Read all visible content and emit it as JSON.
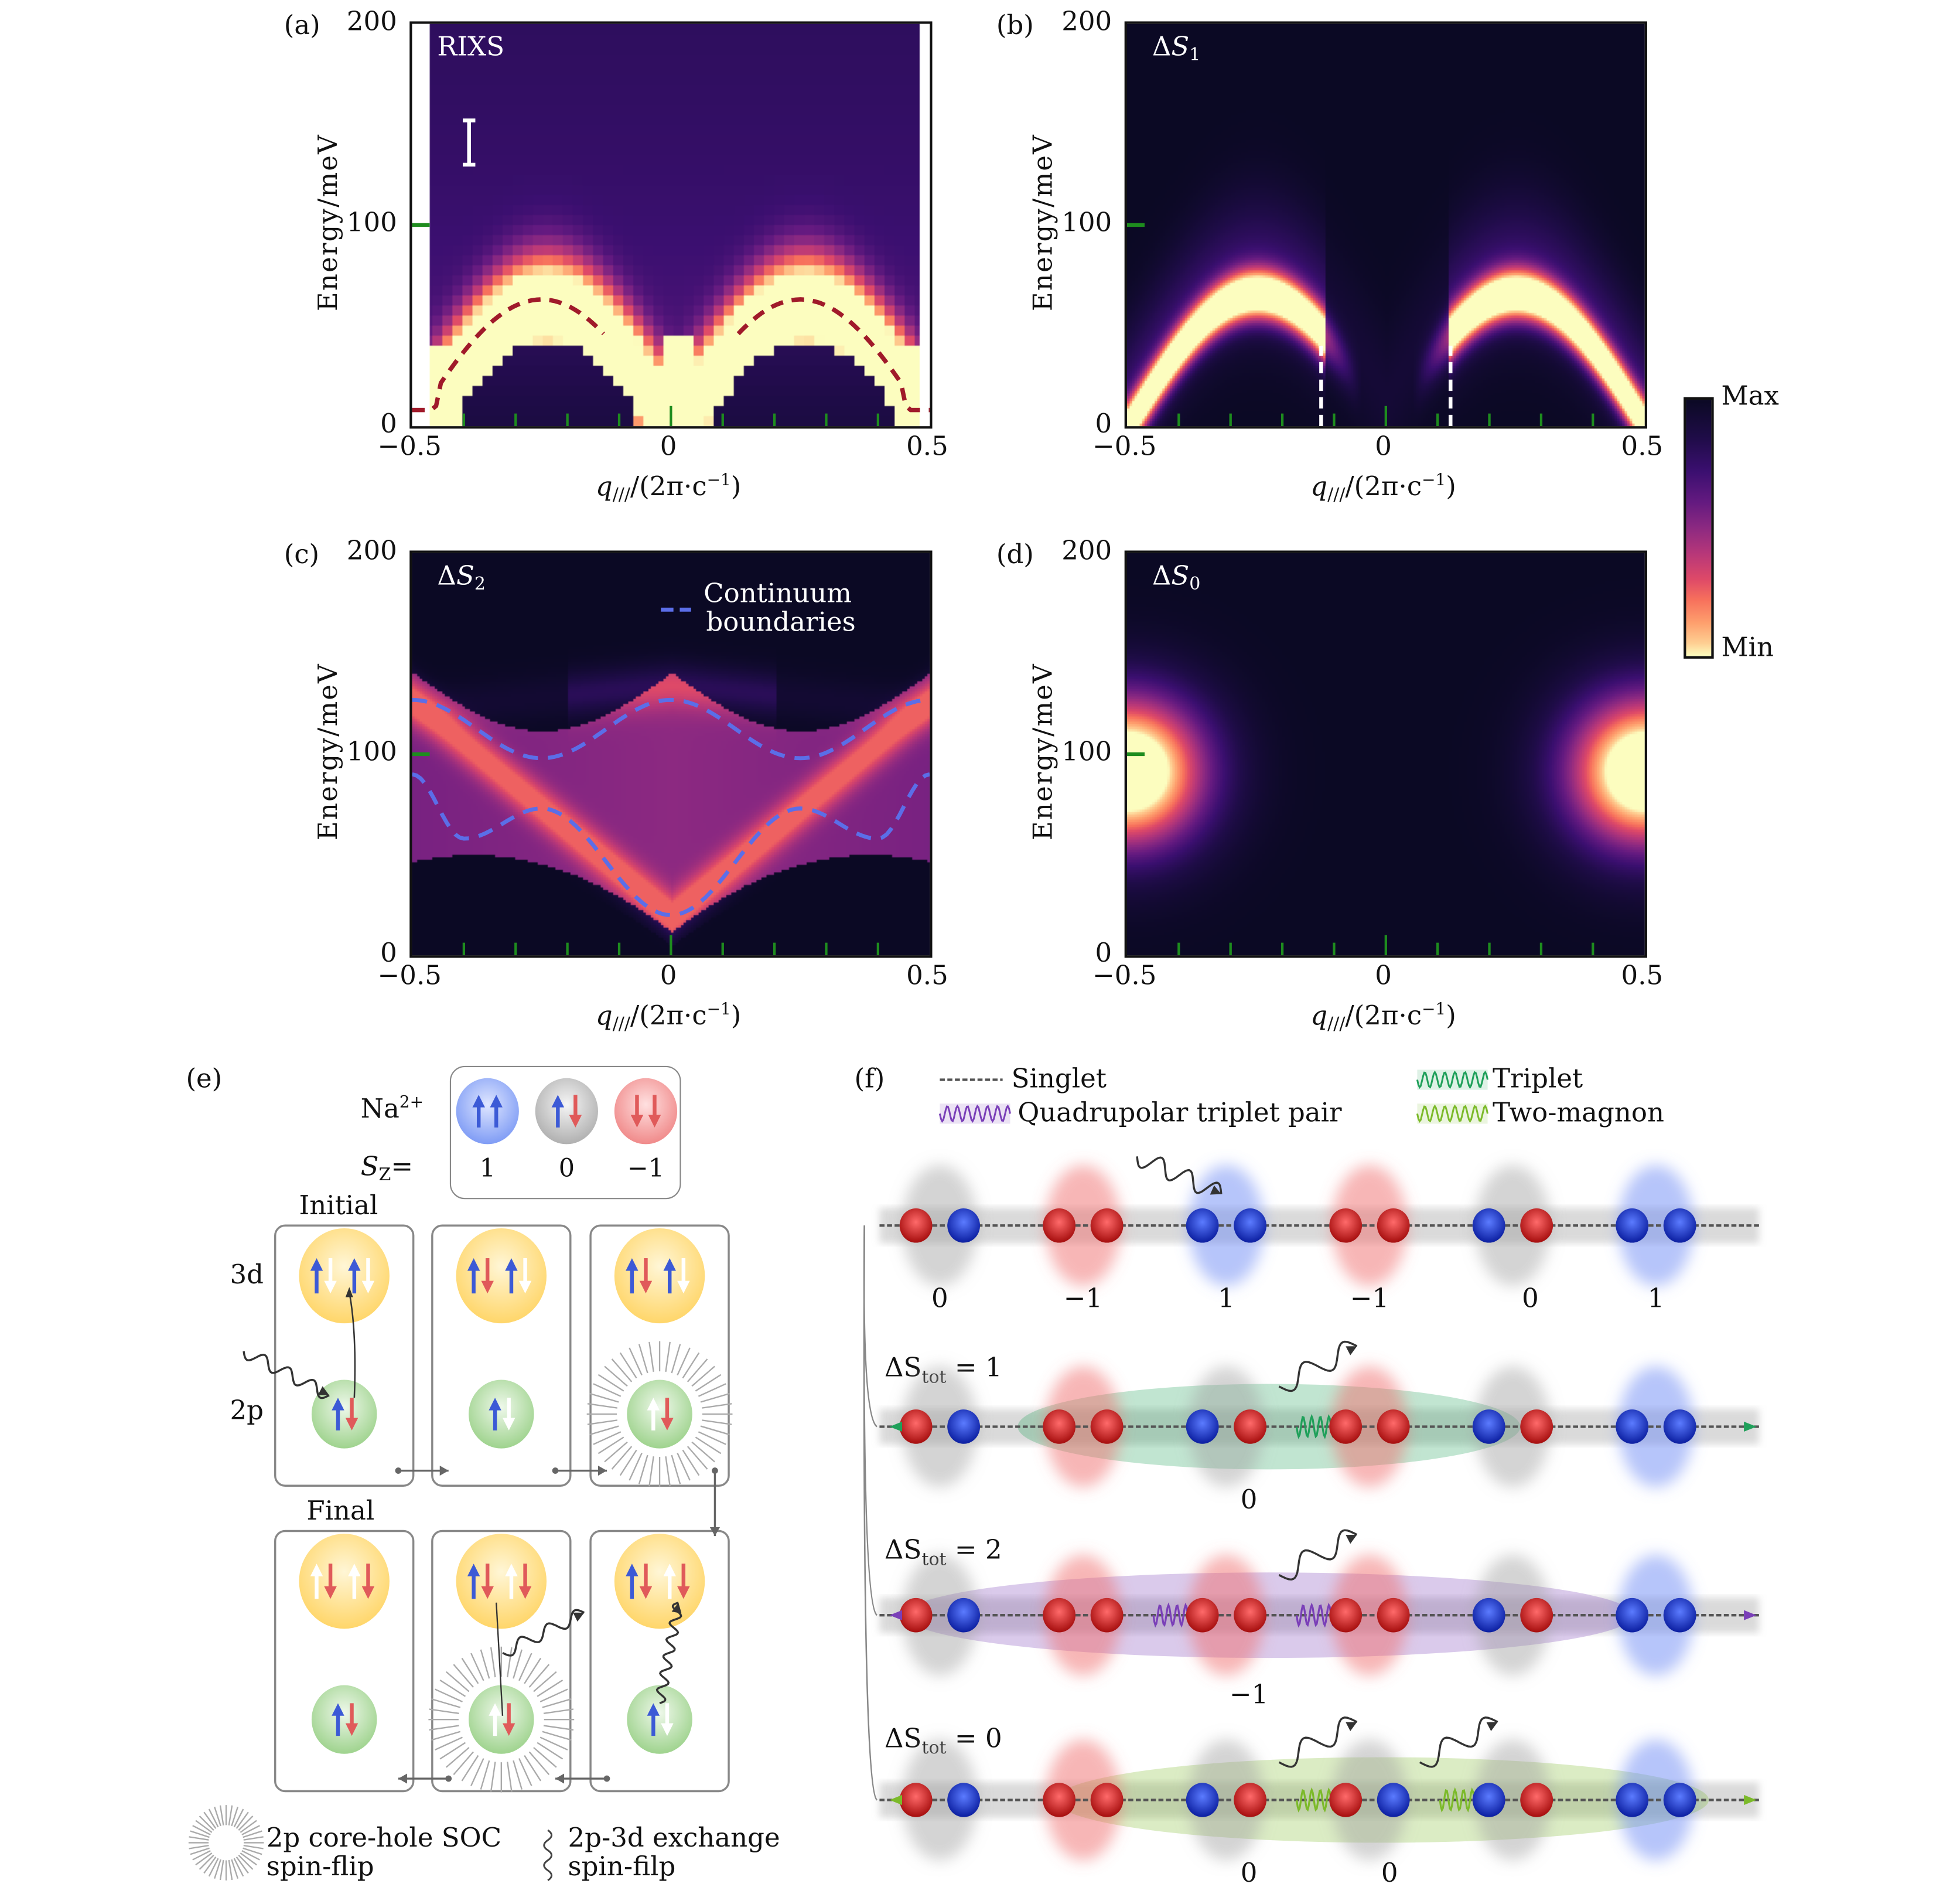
{
  "colorbar": {
    "max_label": "Max",
    "min_label": "Min",
    "colormap": "magma (reversed: Max=dark, Min=light)"
  },
  "chart_data": [
    {
      "id": "a",
      "type": "heatmap",
      "panel_label": "(a)",
      "title": "RIXS",
      "xlabel": "q///(2π·c⁻¹)",
      "ylabel": "Energy/meV",
      "xlim": [
        -0.5,
        0.5
      ],
      "ylim": [
        0,
        200
      ],
      "xticks": [
        "−0.5",
        "0",
        "0.5"
      ],
      "yticks": [
        "200",
        "100",
        "0"
      ],
      "minor_xticks": [
        -0.4,
        -0.3,
        -0.2,
        -0.1,
        0,
        0.1,
        0.2,
        0.3,
        0.4
      ],
      "annotations": [
        "error bar (white) near q=-0.4, E≈130–145 meV",
        "dashed dark-red dispersion curves, peak ≈63 meV at q=±0.25"
      ],
      "dispersion_peak_meV": 63,
      "dispersion_peak_q": [
        -0.25,
        0.25
      ]
    },
    {
      "id": "b",
      "type": "heatmap",
      "panel_label": "(b)",
      "title": "ΔS1",
      "xlabel": "q///(2π·c⁻¹)",
      "ylabel": "Energy/meV",
      "xlim": [
        -0.5,
        0.5
      ],
      "ylim": [
        0,
        200
      ],
      "xticks": [
        "−0.5",
        "0",
        "0.5"
      ],
      "yticks": [
        "200",
        "100",
        "0"
      ],
      "minor_xticks": [
        -0.4,
        -0.3,
        -0.2,
        -0.1,
        0,
        0.1,
        0.2,
        0.3,
        0.4
      ],
      "annotations": [
        "white dashed vertical lines at q=±0.125 from 0 to ≈40 meV"
      ],
      "band_peak_meV": 65,
      "band_peak_q": [
        -0.27,
        0.27
      ]
    },
    {
      "id": "c",
      "type": "heatmap",
      "panel_label": "(c)",
      "title": "ΔS2",
      "xlabel": "q///(2π·c⁻¹)",
      "ylabel": "Energy/meV",
      "xlim": [
        -0.5,
        0.5
      ],
      "ylim": [
        0,
        200
      ],
      "xticks": [
        "−0.5",
        "0",
        "0.5"
      ],
      "yticks": [
        "200",
        "100",
        "0"
      ],
      "minor_xticks": [
        -0.4,
        -0.3,
        -0.2,
        -0.1,
        0,
        0.1,
        0.2,
        0.3,
        0.4
      ],
      "legend": {
        "label_line1": "Continuum",
        "label_line2": "boundaries",
        "position": "top-right",
        "color": "#5b6ee8"
      },
      "upper_boundary": {
        "q": [
          -0.5,
          -0.25,
          0,
          0.25,
          0.5
        ],
        "E": [
          127,
          98,
          127,
          98,
          127
        ]
      },
      "lower_boundary": {
        "q": [
          -0.5,
          -0.4,
          -0.25,
          0,
          0.25,
          0.4,
          0.5
        ],
        "E": [
          90,
          58,
          73,
          20,
          73,
          58,
          90
        ]
      }
    },
    {
      "id": "d",
      "type": "heatmap",
      "panel_label": "(d)",
      "title": "ΔS0",
      "xlabel": "q///(2π·c⁻¹)",
      "ylabel": "Energy/meV",
      "xlim": [
        -0.5,
        0.5
      ],
      "ylim": [
        0,
        200
      ],
      "xticks": [
        "−0.5",
        "0",
        "0.5"
      ],
      "yticks": [
        "200",
        "100",
        "0"
      ],
      "minor_xticks": [
        -0.4,
        -0.3,
        -0.2,
        -0.1,
        0,
        0.1,
        0.2,
        0.3,
        0.4
      ],
      "intensity_centers": [
        {
          "q": -0.5,
          "E": 95
        },
        {
          "q": 0.5,
          "E": 95
        }
      ]
    }
  ],
  "panel_e": {
    "label": "(e)",
    "legend": {
      "ion_label": "Na",
      "ion_charge": "2+",
      "sz_label": "S",
      "sz_sub": "Z",
      "sz_eq": "=",
      "states": [
        {
          "sz": "1",
          "color": "#7f9cf5",
          "spins": [
            "up-blue",
            "up-blue"
          ]
        },
        {
          "sz": "0",
          "color": "#b8b8b8",
          "spins": [
            "up-blue",
            "down-red"
          ]
        },
        {
          "sz": "−1",
          "color": "#f08a8a",
          "spins": [
            "down-red",
            "down-red"
          ]
        }
      ]
    },
    "initial_label": "Initial",
    "final_label": "Final",
    "row_3d": "3d",
    "row_2p": "2p",
    "footer": {
      "soc_line1": "2p core-hole SOC",
      "soc_line2": "spin-flip",
      "exch_line1": "2p-3d exchange",
      "exch_line2": "spin-filp"
    }
  },
  "panel_f": {
    "label": "(f)",
    "legend": [
      {
        "label": "Singlet",
        "style": "dashed",
        "color": "#555555"
      },
      {
        "label": "Triplet",
        "style": "wavy",
        "color": "#1fa05a"
      },
      {
        "label": "Quadrupolar triplet pair",
        "style": "wavy",
        "color": "#7a3fb8"
      },
      {
        "label": "Two-magnon",
        "style": "wavy",
        "color": "#7cba2a"
      }
    ],
    "ground": {
      "pairs": [
        [
          "r",
          "b"
        ],
        [
          "r",
          "r"
        ],
        [
          "b",
          "b"
        ],
        [
          "r",
          "r"
        ],
        [
          "b",
          "r"
        ],
        [
          "b",
          "b"
        ]
      ],
      "halos": [
        "gray",
        "red",
        "blue",
        "red",
        "gray",
        "blue"
      ],
      "values": [
        "0",
        "−1",
        "1",
        "−1",
        "0",
        "1"
      ]
    },
    "rows": [
      {
        "label_prefix": "ΔS",
        "label_sub": "tot",
        "label_value": "= 1",
        "pairs": [
          [
            "r",
            "b"
          ],
          [
            "r",
            "r"
          ],
          [
            "b",
            "r"
          ],
          [
            "r",
            "r"
          ],
          [
            "b",
            "r"
          ],
          [
            "b",
            "b"
          ]
        ],
        "halos": [
          "gray",
          "red",
          "gray",
          "red",
          "gray",
          "blue"
        ],
        "value": "0",
        "bond_color": "#1fa05a"
      },
      {
        "label_prefix": "ΔS",
        "label_sub": "tot",
        "label_value": "= 2",
        "pairs": [
          [
            "r",
            "b"
          ],
          [
            "r",
            "r"
          ],
          [
            "r",
            "r"
          ],
          [
            "r",
            "r"
          ],
          [
            "b",
            "r"
          ],
          [
            "b",
            "b"
          ]
        ],
        "halos": [
          "gray",
          "red",
          "red",
          "red",
          "gray",
          "blue"
        ],
        "value": "−1",
        "bond_color": "#7a3fb8"
      },
      {
        "label_prefix": "ΔS",
        "label_sub": "tot",
        "label_value": "= 0",
        "pairs": [
          [
            "r",
            "b"
          ],
          [
            "r",
            "r"
          ],
          [
            "b",
            "r"
          ],
          [
            "r",
            "b"
          ],
          [
            "b",
            "r"
          ],
          [
            "b",
            "b"
          ]
        ],
        "halos": [
          "gray",
          "red",
          "gray",
          "gray",
          "gray",
          "blue"
        ],
        "values": [
          "0",
          "0"
        ],
        "bond_color": "#7cba2a"
      }
    ]
  },
  "axis_text": {
    "energy": "Energy/meV",
    "q_main": "q",
    "q_sub": "///",
    "q_rest": "(2π·c",
    "q_sup": "−1",
    "q_close": ")"
  }
}
